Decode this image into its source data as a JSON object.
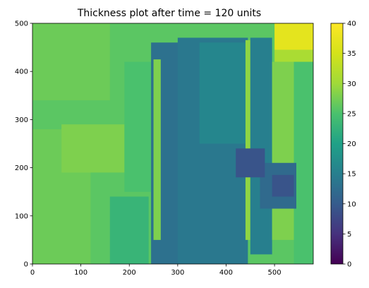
{
  "chart_data": {
    "type": "heatmap",
    "title": "Thickness plot after time = 120 units",
    "xlabel": "",
    "ylabel": "",
    "xlim": [
      0,
      580
    ],
    "ylim": [
      0,
      500
    ],
    "x_ticks": [
      "0",
      "100",
      "200",
      "300",
      "400",
      "500"
    ],
    "y_ticks": [
      "0",
      "100",
      "200",
      "300",
      "400",
      "500"
    ],
    "colormap": "viridis",
    "colorbar": {
      "range": [
        0,
        40
      ],
      "ticks": [
        "0",
        "5",
        "10",
        "15",
        "20",
        "25",
        "30",
        "35",
        "40"
      ]
    },
    "grid": false,
    "regions": [
      {
        "x": [
          0,
          580
        ],
        "y": [
          0,
          500
        ],
        "value": 26
      },
      {
        "x": [
          0,
          160
        ],
        "y": [
          340,
          500
        ],
        "value": 27
      },
      {
        "x": [
          0,
          120
        ],
        "y": [
          0,
          280
        ],
        "value": 27
      },
      {
        "x": [
          60,
          190
        ],
        "y": [
          190,
          290
        ],
        "value": 28
      },
      {
        "x": [
          190,
          245
        ],
        "y": [
          150,
          420
        ],
        "value": 25
      },
      {
        "x": [
          160,
          240
        ],
        "y": [
          0,
          140
        ],
        "value": 23
      },
      {
        "x": [
          245,
          345
        ],
        "y": [
          0,
          460
        ],
        "value": 13
      },
      {
        "x": [
          300,
          445
        ],
        "y": [
          0,
          470
        ],
        "value": 14
      },
      {
        "x": [
          345,
          445
        ],
        "y": [
          250,
          460
        ],
        "value": 16
      },
      {
        "x": [
          250,
          265
        ],
        "y": [
          50,
          425
        ],
        "value": 28
      },
      {
        "x": [
          440,
          450
        ],
        "y": [
          50,
          465
        ],
        "value": 29
      },
      {
        "x": [
          450,
          495
        ],
        "y": [
          20,
          470
        ],
        "value": 15
      },
      {
        "x": [
          495,
          540
        ],
        "y": [
          50,
          420
        ],
        "value": 28
      },
      {
        "x": [
          540,
          580
        ],
        "y": [
          0,
          420
        ],
        "value": 25
      },
      {
        "x": [
          470,
          545
        ],
        "y": [
          115,
          210
        ],
        "value": 12
      },
      {
        "x": [
          495,
          540
        ],
        "y": [
          140,
          185
        ],
        "value": 9
      },
      {
        "x": [
          420,
          480
        ],
        "y": [
          180,
          240
        ],
        "value": 9
      },
      {
        "x": [
          500,
          580
        ],
        "y": [
          445,
          500
        ],
        "value": 37
      },
      {
        "x": [
          500,
          580
        ],
        "y": [
          420,
          445
        ],
        "value": 31
      }
    ]
  }
}
